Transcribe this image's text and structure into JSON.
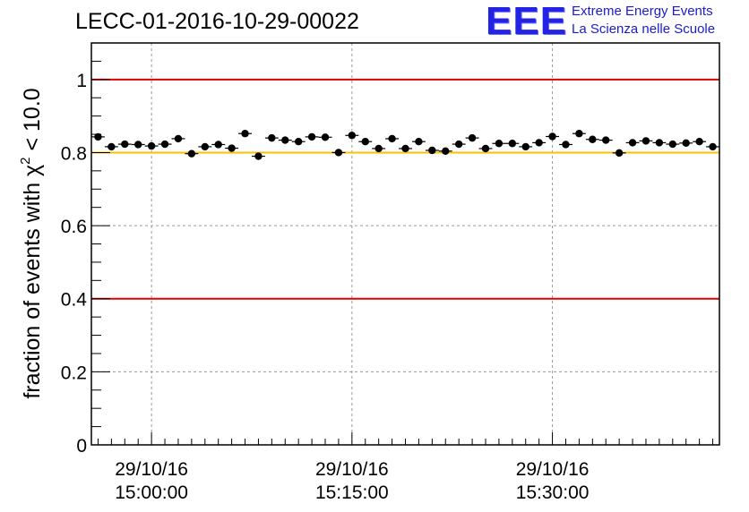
{
  "header": {
    "title": "LECC-01-2016-10-29-00022"
  },
  "logo": {
    "mark": "EEE",
    "line1": "Extreme Energy Events",
    "line2": "La Scienza nelle Scuole",
    "color": "#2323e6"
  },
  "chart_data": {
    "type": "scatter",
    "title": "LECC-01-2016-10-29-00022",
    "xlabel": "",
    "ylabel": "fraction of events with χ² < 10.0",
    "ylabel_parts": {
      "pre": "fraction of events with χ",
      "sup": "2",
      "post": " < 10.0"
    },
    "x_unit": "minutes from 29/10/16 14:55:00",
    "xlim": [
      0,
      47
    ],
    "ylim": [
      0,
      1.1
    ],
    "y_ticks": [
      0,
      0.2,
      0.4,
      0.6,
      0.8,
      1
    ],
    "y_tick_labels": [
      "0",
      "0.2",
      "0.4",
      "0.6",
      "0.8",
      "1"
    ],
    "x_ticks": [
      {
        "x": 4.5,
        "date": "29/10/16",
        "time": "15:00:00"
      },
      {
        "x": 19.5,
        "date": "29/10/16",
        "time": "15:15:00"
      },
      {
        "x": 34.5,
        "date": "29/10/16",
        "time": "15:30:00"
      }
    ],
    "grid": true,
    "reference_lines": [
      {
        "y": 1.0,
        "color": "#e00000"
      },
      {
        "y": 0.8,
        "color": "#ffbf00"
      },
      {
        "y": 0.4,
        "color": "#e00000"
      }
    ],
    "series": [
      {
        "marker_color": "#000000",
        "x": [
          0.5,
          1.5,
          2.5,
          3.5,
          4.5,
          5.5,
          6.5,
          7.5,
          8.5,
          9.5,
          10.5,
          11.5,
          12.5,
          13.5,
          14.5,
          15.5,
          16.5,
          17.5,
          18.5,
          19.5,
          20.5,
          21.5,
          22.5,
          23.5,
          24.5,
          25.5,
          26.5,
          27.5,
          28.5,
          29.5,
          30.5,
          31.5,
          32.5,
          33.5,
          34.5,
          35.5,
          36.5,
          37.5,
          38.5,
          39.5,
          40.5,
          41.5,
          42.5,
          43.5,
          44.5,
          45.5,
          46.5
        ],
        "y": [
          0.843,
          0.816,
          0.823,
          0.822,
          0.818,
          0.823,
          0.838,
          0.797,
          0.816,
          0.822,
          0.812,
          0.852,
          0.79,
          0.84,
          0.834,
          0.83,
          0.843,
          0.842,
          0.8,
          0.847,
          0.83,
          0.811,
          0.838,
          0.811,
          0.83,
          0.806,
          0.804,
          0.823,
          0.84,
          0.811,
          0.825,
          0.825,
          0.816,
          0.827,
          0.844,
          0.822,
          0.852,
          0.836,
          0.834,
          0.799,
          0.827,
          0.832,
          0.827,
          0.823,
          0.826,
          0.83,
          0.816
        ],
        "y_err": 0.009
      }
    ]
  }
}
